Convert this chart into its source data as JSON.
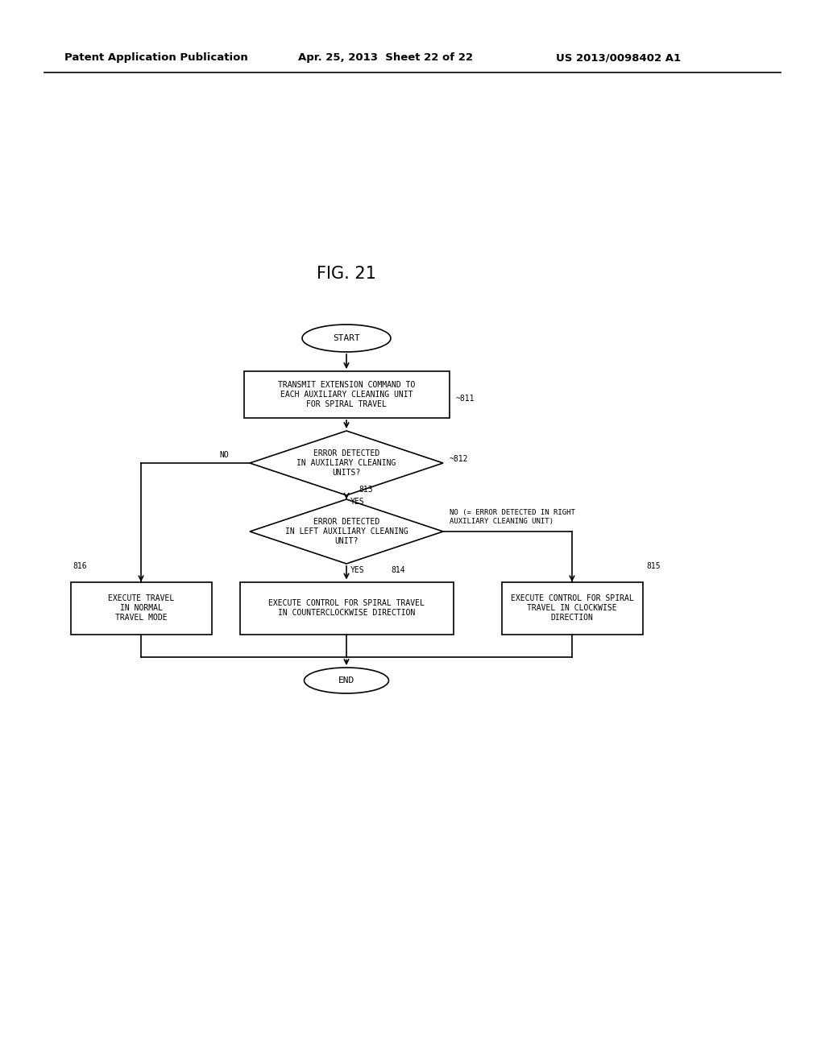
{
  "title": "FIG. 21",
  "header_left": "Patent Application Publication",
  "header_mid": "Apr. 25, 2013  Sheet 22 of 22",
  "header_right": "US 2013/0098402 A1",
  "background_color": "#ffffff",
  "font_size_nodes": 7.0,
  "font_size_header": 9.5,
  "font_size_title": 15,
  "start_label": "START",
  "end_label": "END",
  "box811_text": "TRANSMIT EXTENSION COMMAND TO\nEACH AUXILIARY CLEANING UNIT\nFOR SPIRAL TRAVEL",
  "box811_tag": "~811",
  "d812_text": "ERROR DETECTED\nIN AUXILIARY CLEANING\nUNITS?",
  "d812_tag": "~812",
  "d813_text": "ERROR DETECTED\nIN LEFT AUXILIARY CLEANING\nUNIT?",
  "d813_tag": "813",
  "box816_text": "EXECUTE TRAVEL\nIN NORMAL\nTRAVEL MODE",
  "box816_tag": "816",
  "box814_text": "EXECUTE CONTROL FOR SPIRAL TRAVEL\nIN COUNTERCLOCKWISE DIRECTION",
  "box814_tag": "814",
  "box815_text": "EXECUTE CONTROL FOR SPIRAL\nTRAVEL IN CLOCKWISE\nDIRECTION",
  "box815_tag": "815",
  "d813_no_text": "NO (= ERROR DETECTED IN RIGHT\nAUXILIARY CLEANING UNIT)",
  "label_yes": "YES",
  "label_no": "NO"
}
